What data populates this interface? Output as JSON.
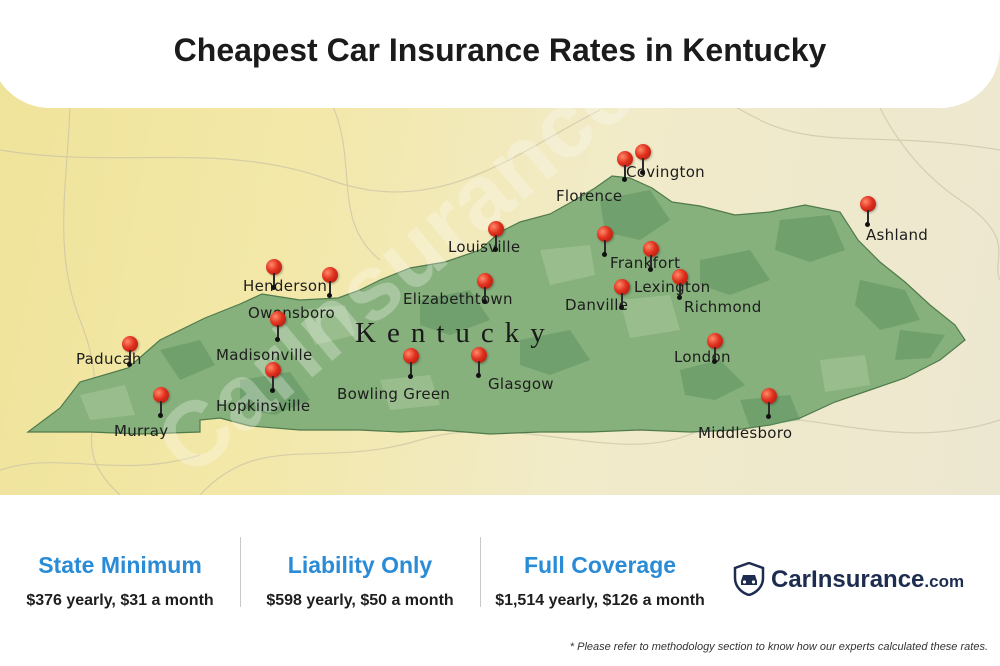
{
  "title": "Cheapest Car Insurance Rates in Kentucky",
  "map": {
    "state_label": "Kentucky",
    "cities": [
      {
        "name": "Covington"
      },
      {
        "name": "Florence"
      },
      {
        "name": "Louisville"
      },
      {
        "name": "Frankfort"
      },
      {
        "name": "Lexington"
      },
      {
        "name": "Ashland"
      },
      {
        "name": "Henderson"
      },
      {
        "name": "Owensboro"
      },
      {
        "name": "Elizabethtown"
      },
      {
        "name": "Danville"
      },
      {
        "name": "Richmond"
      },
      {
        "name": "Paducah"
      },
      {
        "name": "Madisonville"
      },
      {
        "name": "London"
      },
      {
        "name": "Hopkinsville"
      },
      {
        "name": "Bowling Green"
      },
      {
        "name": "Glasgow"
      },
      {
        "name": "Murray"
      },
      {
        "name": "Middlesboro"
      }
    ]
  },
  "stats": [
    {
      "heading": "State Minimum",
      "value": "$376 yearly, $31 a month"
    },
    {
      "heading": "Liability Only",
      "value": "$598 yearly, $50 a month"
    },
    {
      "heading": "Full Coverage",
      "value": "$1,514 yearly, $126 a month"
    }
  ],
  "brand": {
    "name": "CarInsurance",
    "suffix": ".com",
    "icon": "shield-car-icon"
  },
  "footnote": "* Please refer to methodology section to know how our experts calculated these rates.",
  "watermark": "CarInsurance.com",
  "colors": {
    "accent_blue": "#2a8bd6",
    "brand_navy": "#1d2c4f",
    "pin_red": "#e0301d",
    "state_green": "#6f9f6a"
  }
}
